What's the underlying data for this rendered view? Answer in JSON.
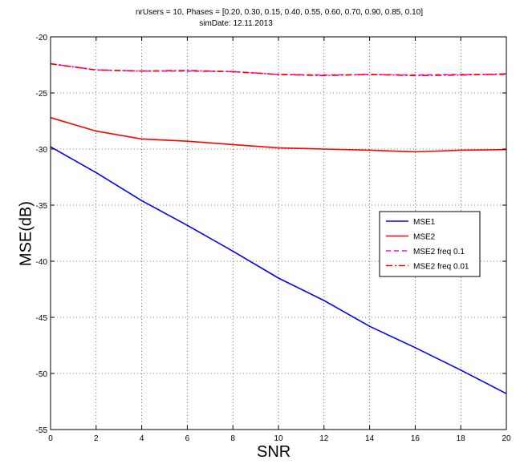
{
  "chart_data": {
    "type": "line",
    "title_lines": [
      "nrUsers = 10, Phases = [0.20, 0.30, 0.15, 0.40, 0.55, 0.60, 0.70, 0.90, 0.85, 0.10]",
      "simDate: 12.11.2013"
    ],
    "xlabel": "SNR",
    "ylabel": "MSE(dB)",
    "xlim": [
      0,
      20
    ],
    "ylim": [
      -55,
      -20
    ],
    "xticks": [
      0,
      2,
      4,
      6,
      8,
      10,
      12,
      14,
      16,
      18,
      20
    ],
    "yticks": [
      -20,
      -25,
      -30,
      -35,
      -40,
      -45,
      -50,
      -55
    ],
    "grid": true,
    "legend_position": "right-center",
    "x": [
      0,
      2,
      4,
      6,
      8,
      10,
      12,
      14,
      16,
      18,
      20
    ],
    "series": [
      {
        "name": "MSE1",
        "color": "#0000ff",
        "dash": "solid",
        "values": [
          -29.8,
          -32.1,
          -34.6,
          -36.8,
          -39.1,
          -41.5,
          -43.5,
          -45.8,
          -47.7,
          -49.7,
          -51.8
        ]
      },
      {
        "name": "MSE2",
        "color": "#ff0000",
        "dash": "solid",
        "values": [
          -27.2,
          -28.4,
          -29.1,
          -29.3,
          -29.6,
          -29.9,
          -30.0,
          -30.1,
          -30.25,
          -30.1,
          -30.05
        ]
      },
      {
        "name": "MSE2 freq 0.1",
        "color": "#ff00ff",
        "dash": "dashed",
        "values": [
          -22.4,
          -22.95,
          -23.05,
          -23.05,
          -23.1,
          -23.35,
          -23.4,
          -23.35,
          -23.4,
          -23.35,
          -23.35
        ]
      },
      {
        "name": "MSE2 freq 0.01",
        "color": "#ff0000",
        "dash": "dashdot",
        "values": [
          -22.4,
          -22.95,
          -23.05,
          -23.0,
          -23.1,
          -23.35,
          -23.45,
          -23.35,
          -23.45,
          -23.4,
          -23.3
        ]
      }
    ]
  }
}
